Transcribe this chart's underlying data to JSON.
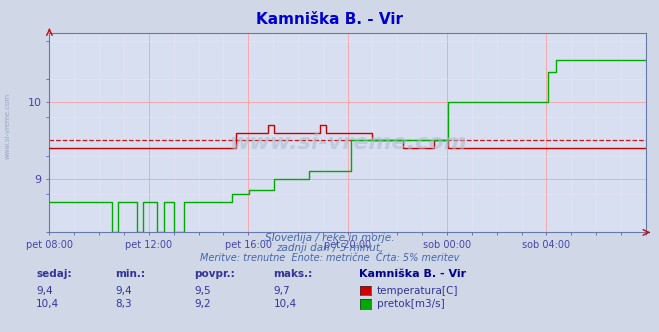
{
  "title": "Kamniška B. - Vir",
  "title_color": "#0000cc",
  "bg_color": "#d0d8e8",
  "plot_bg_color": "#d8dff0",
  "grid_color_major": "#ff9999",
  "grid_color_minor": "#e8e8f8",
  "tick_color": "#4444aa",
  "watermark": "www.si-vreme.com",
  "subtitle1": "Slovenija / reke in morje.",
  "subtitle2": "zadnji dan / 5 minut.",
  "subtitle3": "Meritve: trenutne  Enote: metrične  Črta: 5% meritev",
  "subtitle_color": "#4466aa",
  "xtick_labels": [
    "pet 08:00",
    "pet 12:00",
    "pet 16:00",
    "pet 20:00",
    "sob 00:00",
    "sob 04:00"
  ],
  "ytick_labels": [
    "9",
    "10"
  ],
  "ymin": 8.3,
  "ymax": 10.9,
  "temp_color": "#cc0000",
  "flow_color": "#00aa00",
  "avg_temp": 9.5,
  "legend_title": "Kamniška B. - Vir",
  "table_headers": [
    "sedaj:",
    "min.:",
    "povpr.:",
    "maks.:"
  ],
  "table_data": [
    [
      "9,4",
      "9,4",
      "9,5",
      "9,7"
    ],
    [
      "10,4",
      "8,3",
      "9,2",
      "10,4"
    ]
  ],
  "table_labels": [
    "temperatura[C]",
    "pretok[m3/s]"
  ],
  "table_color": "#333399",
  "side_text": "www.si-vreme.com"
}
